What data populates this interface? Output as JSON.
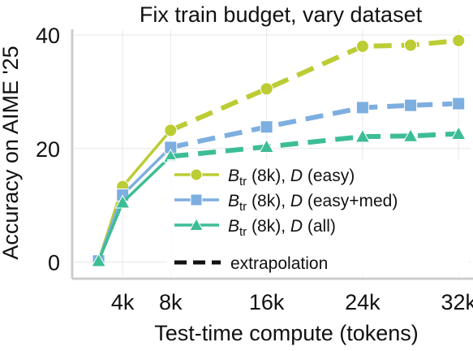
{
  "chart_data": {
    "type": "line",
    "title": "Fix train budget, vary dataset",
    "xlabel": "Test-time compute (tokens)",
    "ylabel": "Accuracy on AIME '25",
    "x_ticks": [
      4,
      8,
      16,
      24,
      32
    ],
    "x_tick_labels": [
      "4k",
      "8k",
      "16k",
      "24k",
      "32k"
    ],
    "y_ticks": [
      0,
      20,
      40
    ],
    "y_tick_labels": [
      "0",
      "20",
      "40"
    ],
    "xlim": [
      0,
      33
    ],
    "ylim": [
      -2.5,
      41
    ],
    "grid": true,
    "legend_position": "lower-right",
    "series": [
      {
        "name": "B_tr (8k), D (easy)",
        "legend_base": "B",
        "legend_sub": "tr",
        "legend_rest": " (8k), ",
        "legend_var": "D",
        "legend_tail": " (easy)",
        "color": "#bccc34",
        "marker": "circle",
        "x": [
          2,
          4,
          8,
          16,
          24,
          28,
          32
        ],
        "y": [
          0.2,
          13.3,
          23.2,
          30.5,
          38.0,
          38.2,
          39.0
        ],
        "solid_until": 8
      },
      {
        "name": "B_tr (8k), D (easy+med)",
        "legend_base": "B",
        "legend_sub": "tr",
        "legend_rest": " (8k), ",
        "legend_var": "D",
        "legend_tail": " (easy+med)",
        "color": "#7daee0",
        "marker": "square",
        "x": [
          2,
          4,
          8,
          16,
          24,
          28,
          32
        ],
        "y": [
          0.2,
          11.8,
          20.2,
          23.8,
          27.2,
          27.6,
          27.9
        ],
        "solid_until": 8
      },
      {
        "name": "B_tr (8k), D (all)",
        "legend_base": "B",
        "legend_sub": "tr",
        "legend_rest": " (8k), ",
        "legend_var": "D",
        "legend_tail": " (all)",
        "color": "#3dbd96",
        "marker": "triangle",
        "x": [
          2,
          4,
          8,
          16,
          24,
          28,
          32
        ],
        "y": [
          0.2,
          10.5,
          18.6,
          20.3,
          22.1,
          22.2,
          22.6
        ],
        "solid_until": 8
      }
    ],
    "extrapolation_label": "extrapolation"
  }
}
